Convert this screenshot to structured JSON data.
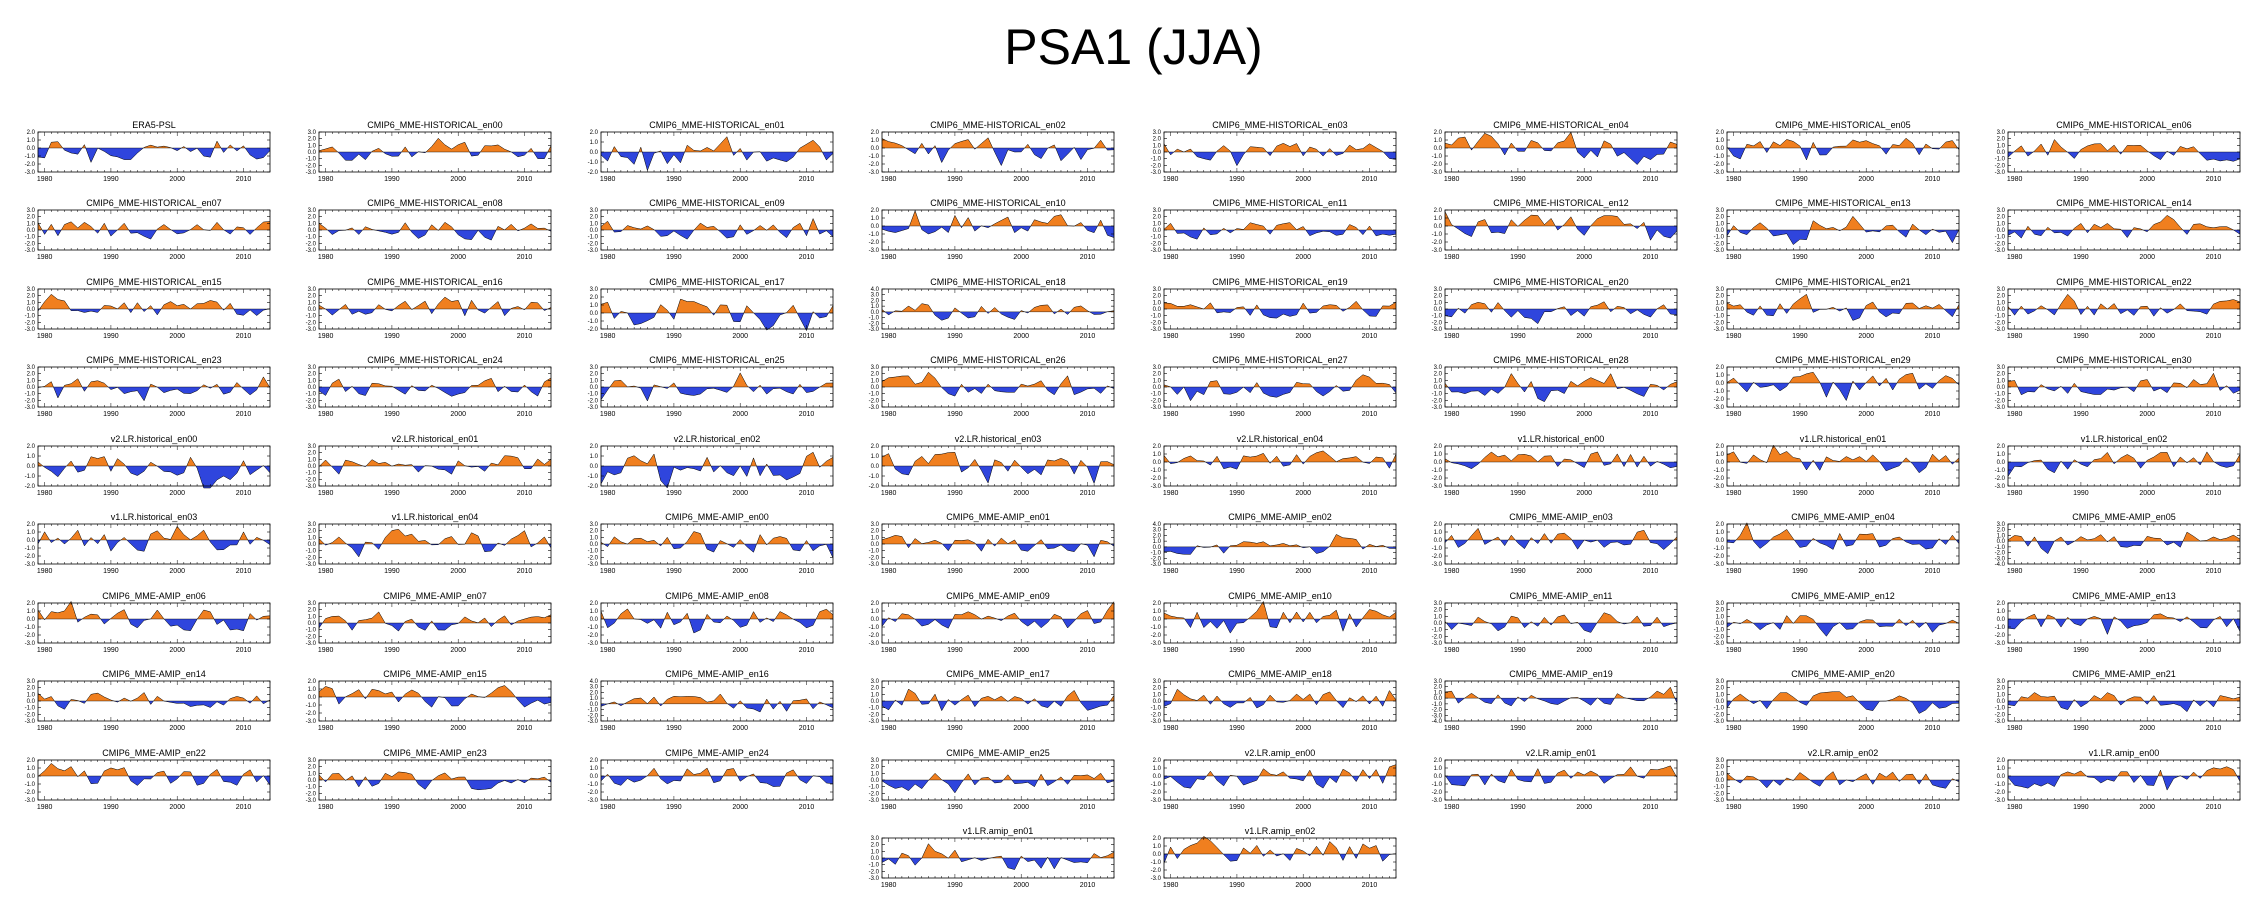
{
  "page": {
    "title": "PSA1 (JJA)"
  },
  "chart_data": {
    "type": "area",
    "title": "PSA1 (JJA)",
    "x_range": [
      1979,
      2014
    ],
    "x_ticks": [
      "1980",
      "1990",
      "2000",
      "2010"
    ],
    "positive_color": "#f07f1f",
    "negative_color": "#2f45dd",
    "panels": [
      {
        "name": "ERA5-PSL",
        "ylim": [
          -3,
          2
        ],
        "y_ticks": [
          "2.0",
          "1.0",
          "0.0",
          "-1.0",
          "-2.0",
          "-3.0"
        ]
      },
      {
        "name": "CMIP6_MME-HISTORICAL_en00",
        "ylim": [
          -3,
          3
        ],
        "y_ticks": [
          "3.0",
          "2.0",
          "1.0",
          "0.0",
          "-1.0",
          "-2.0",
          "-3.0"
        ]
      },
      {
        "name": "CMIP6_MME-HISTORICAL_en01",
        "ylim": [
          -2,
          2
        ],
        "y_ticks": [
          "2.0",
          "1.0",
          "0.0",
          "-1.0",
          "-2.0"
        ]
      },
      {
        "name": "CMIP6_MME-HISTORICAL_en02",
        "ylim": [
          -3,
          2
        ],
        "y_ticks": [
          "2.0",
          "1.0",
          "0.0",
          "-1.0",
          "-2.0",
          "-3.0"
        ]
      },
      {
        "name": "CMIP6_MME-HISTORICAL_en03",
        "ylim": [
          -3,
          3
        ],
        "y_ticks": [
          "3.0",
          "2.0",
          "1.0",
          "0.0",
          "-1.0",
          "-2.0",
          "-3.0"
        ]
      },
      {
        "name": "CMIP6_MME-HISTORICAL_en04",
        "ylim": [
          -3,
          2
        ],
        "y_ticks": [
          "2.0",
          "1.0",
          "0.0",
          "-1.0",
          "-2.0",
          "-3.0"
        ]
      },
      {
        "name": "CMIP6_MME-HISTORICAL_en05",
        "ylim": [
          -3,
          2
        ],
        "y_ticks": [
          "2.0",
          "1.0",
          "0.0",
          "-1.0",
          "-2.0",
          "-3.0"
        ]
      },
      {
        "name": "CMIP6_MME-HISTORICAL_en06",
        "ylim": [
          -3,
          3
        ],
        "y_ticks": [
          "3.0",
          "2.0",
          "1.0",
          "0.0",
          "-1.0",
          "-2.0",
          "-3.0"
        ]
      },
      {
        "name": "CMIP6_MME-HISTORICAL_en07",
        "ylim": [
          -3,
          3
        ],
        "y_ticks": [
          "3.0",
          "2.0",
          "1.0",
          "0.0",
          "-1.0",
          "-2.0",
          "-3.0"
        ]
      },
      {
        "name": "CMIP6_MME-HISTORICAL_en08",
        "ylim": [
          -3,
          3
        ],
        "y_ticks": [
          "3.0",
          "2.0",
          "1.0",
          "0.0",
          "-1.0",
          "-2.0",
          "-3.0"
        ]
      },
      {
        "name": "CMIP6_MME-HISTORICAL_en09",
        "ylim": [
          -3,
          3
        ],
        "y_ticks": [
          "3.0",
          "2.0",
          "1.0",
          "0.0",
          "-1.0",
          "-2.0",
          "-3.0"
        ]
      },
      {
        "name": "CMIP6_MME-HISTORICAL_en10",
        "ylim": [
          -3,
          2
        ],
        "y_ticks": [
          "2.0",
          "1.0",
          "0.0",
          "-1.0",
          "-2.0",
          "-3.0"
        ]
      },
      {
        "name": "CMIP6_MME-HISTORICAL_en11",
        "ylim": [
          -3,
          3
        ],
        "y_ticks": [
          "3.0",
          "2.0",
          "1.0",
          "0.0",
          "-1.0",
          "-2.0",
          "-3.0"
        ]
      },
      {
        "name": "CMIP6_MME-HISTORICAL_en12",
        "ylim": [
          -3,
          2
        ],
        "y_ticks": [
          "2.0",
          "1.0",
          "0.0",
          "-1.0",
          "-2.0",
          "-3.0"
        ]
      },
      {
        "name": "CMIP6_MME-HISTORICAL_en13",
        "ylim": [
          -3,
          3
        ],
        "y_ticks": [
          "3.0",
          "2.0",
          "1.0",
          "0.0",
          "-1.0",
          "-2.0",
          "-3.0"
        ]
      },
      {
        "name": "CMIP6_MME-HISTORICAL_en14",
        "ylim": [
          -3,
          3
        ],
        "y_ticks": [
          "3.0",
          "2.0",
          "1.0",
          "0.0",
          "-1.0",
          "-2.0",
          "-3.0"
        ]
      },
      {
        "name": "CMIP6_MME-HISTORICAL_en15",
        "ylim": [
          -3,
          3
        ],
        "y_ticks": [
          "3.0",
          "2.0",
          "1.0",
          "0.0",
          "-1.0",
          "-2.0",
          "-3.0"
        ]
      },
      {
        "name": "CMIP6_MME-HISTORICAL_en16",
        "ylim": [
          -3,
          3
        ],
        "y_ticks": [
          "3.0",
          "2.0",
          "1.0",
          "0.0",
          "-1.0",
          "-2.0",
          "-3.0"
        ]
      },
      {
        "name": "CMIP6_MME-HISTORICAL_en17",
        "ylim": [
          -2,
          3
        ],
        "y_ticks": [
          "3.0",
          "2.0",
          "1.0",
          "0.0",
          "-1.0",
          "-2.0"
        ]
      },
      {
        "name": "CMIP6_MME-HISTORICAL_en18",
        "ylim": [
          -3,
          4
        ],
        "y_ticks": [
          "4.0",
          "3.0",
          "2.0",
          "1.0",
          "0.0",
          "-1.0",
          "-2.0",
          "-3.0"
        ]
      },
      {
        "name": "CMIP6_MME-HISTORICAL_en19",
        "ylim": [
          -3,
          3
        ],
        "y_ticks": [
          "3.0",
          "2.0",
          "1.0",
          "0.0",
          "-1.0",
          "-2.0",
          "-3.0"
        ]
      },
      {
        "name": "CMIP6_MME-HISTORICAL_en20",
        "ylim": [
          -3,
          3
        ],
        "y_ticks": [
          "3.0",
          "2.0",
          "1.0",
          "0.0",
          "-1.0",
          "-2.0",
          "-3.0"
        ]
      },
      {
        "name": "CMIP6_MME-HISTORICAL_en21",
        "ylim": [
          -3,
          3
        ],
        "y_ticks": [
          "3.0",
          "2.0",
          "1.0",
          "0.0",
          "-1.0",
          "-2.0",
          "-3.0"
        ]
      },
      {
        "name": "CMIP6_MME-HISTORICAL_en22",
        "ylim": [
          -3,
          3
        ],
        "y_ticks": [
          "3.0",
          "2.0",
          "1.0",
          "0.0",
          "-1.0",
          "-2.0",
          "-3.0"
        ]
      },
      {
        "name": "CMIP6_MME-HISTORICAL_en23",
        "ylim": [
          -3,
          3
        ],
        "y_ticks": [
          "3.0",
          "2.0",
          "1.0",
          "0.0",
          "-1.0",
          "-2.0",
          "-3.0"
        ]
      },
      {
        "name": "CMIP6_MME-HISTORICAL_en24",
        "ylim": [
          -3,
          3
        ],
        "y_ticks": [
          "3.0",
          "2.0",
          "1.0",
          "0.0",
          "-1.0",
          "-2.0",
          "-3.0"
        ]
      },
      {
        "name": "CMIP6_MME-HISTORICAL_en25",
        "ylim": [
          -3,
          3
        ],
        "y_ticks": [
          "3.0",
          "2.0",
          "1.0",
          "0.0",
          "-1.0",
          "-2.0",
          "-3.0"
        ]
      },
      {
        "name": "CMIP6_MME-HISTORICAL_en26",
        "ylim": [
          -3,
          3
        ],
        "y_ticks": [
          "3.0",
          "2.0",
          "1.0",
          "0.0",
          "-1.0",
          "-2.0",
          "-3.0"
        ]
      },
      {
        "name": "CMIP6_MME-HISTORICAL_en27",
        "ylim": [
          -3,
          3
        ],
        "y_ticks": [
          "3.0",
          "2.0",
          "1.0",
          "0.0",
          "-1.0",
          "-2.0",
          "-3.0"
        ]
      },
      {
        "name": "CMIP6_MME-HISTORICAL_en28",
        "ylim": [
          -3,
          3
        ],
        "y_ticks": [
          "3.0",
          "2.0",
          "1.0",
          "0.0",
          "-1.0",
          "-2.0",
          "-3.0"
        ]
      },
      {
        "name": "CMIP6_MME-HISTORICAL_en29",
        "ylim": [
          -3,
          2
        ],
        "y_ticks": [
          "2.0",
          "1.0",
          "0.0",
          "-1.0",
          "-2.0",
          "-3.0"
        ]
      },
      {
        "name": "CMIP6_MME-HISTORICAL_en30",
        "ylim": [
          -3,
          3
        ],
        "y_ticks": [
          "3.0",
          "2.0",
          "1.0",
          "0.0",
          "-1.0",
          "-2.0",
          "-3.0"
        ]
      },
      {
        "name": "v2.LR.historical_en00",
        "ylim": [
          -2,
          2
        ],
        "y_ticks": [
          "2.0",
          "1.0",
          "0.0",
          "-1.0",
          "-2.0"
        ]
      },
      {
        "name": "v2.LR.historical_en01",
        "ylim": [
          -3,
          3
        ],
        "y_ticks": [
          "3.0",
          "2.0",
          "1.0",
          "0.0",
          "-1.0",
          "-2.0",
          "-3.0"
        ]
      },
      {
        "name": "v2.LR.historical_en02",
        "ylim": [
          -2,
          2
        ],
        "y_ticks": [
          "2.0",
          "1.0",
          "0.0",
          "-1.0",
          "-2.0"
        ]
      },
      {
        "name": "v2.LR.historical_en03",
        "ylim": [
          -2,
          2
        ],
        "y_ticks": [
          "2.0",
          "1.0",
          "0.0",
          "-1.0",
          "-2.0"
        ]
      },
      {
        "name": "v2.LR.historical_en04",
        "ylim": [
          -3,
          2
        ],
        "y_ticks": [
          "2.0",
          "1.0",
          "0.0",
          "-1.0",
          "-2.0",
          "-3.0"
        ]
      },
      {
        "name": "v1.LR.historical_en00",
        "ylim": [
          -3,
          2
        ],
        "y_ticks": [
          "2.0",
          "1.0",
          "0.0",
          "-1.0",
          "-2.0",
          "-3.0"
        ]
      },
      {
        "name": "v1.LR.historical_en01",
        "ylim": [
          -3,
          2
        ],
        "y_ticks": [
          "2.0",
          "1.0",
          "0.0",
          "-1.0",
          "-2.0",
          "-3.0"
        ]
      },
      {
        "name": "v1.LR.historical_en02",
        "ylim": [
          -3,
          2
        ],
        "y_ticks": [
          "2.0",
          "1.0",
          "0.0",
          "-1.0",
          "-2.0",
          "-3.0"
        ]
      },
      {
        "name": "v1.LR.historical_en03",
        "ylim": [
          -3,
          2
        ],
        "y_ticks": [
          "2.0",
          "1.0",
          "0.0",
          "-1.0",
          "-2.0",
          "-3.0"
        ]
      },
      {
        "name": "v1.LR.historical_en04",
        "ylim": [
          -3,
          3
        ],
        "y_ticks": [
          "3.0",
          "2.0",
          "1.0",
          "0.0",
          "-1.0",
          "-2.0",
          "-3.0"
        ]
      },
      {
        "name": "CMIP6_MME-AMIP_en00",
        "ylim": [
          -3,
          3
        ],
        "y_ticks": [
          "3.0",
          "2.0",
          "1.0",
          "0.0",
          "-1.0",
          "-2.0",
          "-3.0"
        ]
      },
      {
        "name": "CMIP6_MME-AMIP_en01",
        "ylim": [
          -3,
          3
        ],
        "y_ticks": [
          "3.0",
          "2.0",
          "1.0",
          "0.0",
          "-1.0",
          "-2.0",
          "-3.0"
        ]
      },
      {
        "name": "CMIP6_MME-AMIP_en02",
        "ylim": [
          -3,
          4
        ],
        "y_ticks": [
          "4.0",
          "3.0",
          "2.0",
          "1.0",
          "0.0",
          "-1.0",
          "-2.0",
          "-3.0"
        ]
      },
      {
        "name": "CMIP6_MME-AMIP_en03",
        "ylim": [
          -3,
          2
        ],
        "y_ticks": [
          "2.0",
          "1.0",
          "0.0",
          "-1.0",
          "-2.0",
          "-3.0"
        ]
      },
      {
        "name": "CMIP6_MME-AMIP_en04",
        "ylim": [
          -3,
          2
        ],
        "y_ticks": [
          "2.0",
          "1.0",
          "0.0",
          "-1.0",
          "-2.0",
          "-3.0"
        ]
      },
      {
        "name": "CMIP6_MME-AMIP_en05",
        "ylim": [
          -4,
          3
        ],
        "y_ticks": [
          "3.0",
          "2.0",
          "1.0",
          "0.0",
          "-1.0",
          "-2.0",
          "-3.0",
          "-4.0"
        ]
      },
      {
        "name": "CMIP6_MME-AMIP_en06",
        "ylim": [
          -3,
          2
        ],
        "y_ticks": [
          "2.0",
          "1.0",
          "0.0",
          "-1.0",
          "-2.0",
          "-3.0"
        ]
      },
      {
        "name": "CMIP6_MME-AMIP_en07",
        "ylim": [
          -3,
          3
        ],
        "y_ticks": [
          "3.0",
          "2.0",
          "1.0",
          "0.0",
          "-1.0",
          "-2.0",
          "-3.0"
        ]
      },
      {
        "name": "CMIP6_MME-AMIP_en08",
        "ylim": [
          -3,
          2
        ],
        "y_ticks": [
          "2.0",
          "1.0",
          "0.0",
          "-1.0",
          "-2.0",
          "-3.0"
        ]
      },
      {
        "name": "CMIP6_MME-AMIP_en09",
        "ylim": [
          -3,
          2
        ],
        "y_ticks": [
          "2.0",
          "1.0",
          "0.0",
          "-1.0",
          "-2.0",
          "-3.0"
        ]
      },
      {
        "name": "CMIP6_MME-AMIP_en10",
        "ylim": [
          -3,
          2
        ],
        "y_ticks": [
          "2.0",
          "1.0",
          "0.0",
          "-1.0",
          "-2.0",
          "-3.0"
        ]
      },
      {
        "name": "CMIP6_MME-AMIP_en11",
        "ylim": [
          -3,
          3
        ],
        "y_ticks": [
          "3.0",
          "2.0",
          "1.0",
          "0.0",
          "-1.0",
          "-2.0",
          "-3.0"
        ]
      },
      {
        "name": "CMIP6_MME-AMIP_en12",
        "ylim": [
          -3,
          3
        ],
        "y_ticks": [
          "3.0",
          "2.0",
          "1.0",
          "0.0",
          "-1.0",
          "-2.0",
          "-3.0"
        ]
      },
      {
        "name": "CMIP6_MME-AMIP_en13",
        "ylim": [
          -3,
          2
        ],
        "y_ticks": [
          "2.0",
          "1.0",
          "0.0",
          "-1.0",
          "-2.0",
          "-3.0"
        ]
      },
      {
        "name": "CMIP6_MME-AMIP_en14",
        "ylim": [
          -3,
          3
        ],
        "y_ticks": [
          "3.0",
          "2.0",
          "1.0",
          "0.0",
          "-1.0",
          "-2.0",
          "-3.0"
        ]
      },
      {
        "name": "CMIP6_MME-AMIP_en15",
        "ylim": [
          -3,
          2
        ],
        "y_ticks": [
          "2.0",
          "1.0",
          "0.0",
          "-1.0",
          "-2.0",
          "-3.0"
        ]
      },
      {
        "name": "CMIP6_MME-AMIP_en16",
        "ylim": [
          -3,
          4
        ],
        "y_ticks": [
          "4.0",
          "3.0",
          "2.0",
          "1.0",
          "0.0",
          "-1.0",
          "-2.0",
          "-3.0"
        ]
      },
      {
        "name": "CMIP6_MME-AMIP_en17",
        "ylim": [
          -3,
          3
        ],
        "y_ticks": [
          "3.0",
          "2.0",
          "1.0",
          "0.0",
          "-1.0",
          "-2.0",
          "-3.0"
        ]
      },
      {
        "name": "CMIP6_MME-AMIP_en18",
        "ylim": [
          -3,
          3
        ],
        "y_ticks": [
          "3.0",
          "2.0",
          "1.0",
          "0.0",
          "-1.0",
          "-2.0",
          "-3.0"
        ]
      },
      {
        "name": "CMIP6_MME-AMIP_en19",
        "ylim": [
          -4,
          3
        ],
        "y_ticks": [
          "3.0",
          "2.0",
          "1.0",
          "0.0",
          "-1.0",
          "-2.0",
          "-3.0",
          "-4.0"
        ]
      },
      {
        "name": "CMIP6_MME-AMIP_en20",
        "ylim": [
          -3,
          3
        ],
        "y_ticks": [
          "3.0",
          "2.0",
          "1.0",
          "0.0",
          "-1.0",
          "-2.0",
          "-3.0"
        ]
      },
      {
        "name": "CMIP6_MME-AMIP_en21",
        "ylim": [
          -3,
          3
        ],
        "y_ticks": [
          "3.0",
          "2.0",
          "1.0",
          "0.0",
          "-1.0",
          "-2.0",
          "-3.0"
        ]
      },
      {
        "name": "CMIP6_MME-AMIP_en22",
        "ylim": [
          -3,
          2
        ],
        "y_ticks": [
          "2.0",
          "1.0",
          "0.0",
          "-1.0",
          "-2.0",
          "-3.0"
        ]
      },
      {
        "name": "CMIP6_MME-AMIP_en23",
        "ylim": [
          -3,
          3
        ],
        "y_ticks": [
          "3.0",
          "2.0",
          "1.0",
          "0.0",
          "-1.0",
          "-2.0",
          "-3.0"
        ]
      },
      {
        "name": "CMIP6_MME-AMIP_en24",
        "ylim": [
          -3,
          2
        ],
        "y_ticks": [
          "2.0",
          "1.0",
          "0.0",
          "-1.0",
          "-2.0",
          "-3.0"
        ]
      },
      {
        "name": "CMIP6_MME-AMIP_en25",
        "ylim": [
          -3,
          3
        ],
        "y_ticks": [
          "3.0",
          "2.0",
          "1.0",
          "0.0",
          "-1.0",
          "-2.0",
          "-3.0"
        ]
      },
      {
        "name": "v2.LR.amip_en00",
        "ylim": [
          -3,
          2
        ],
        "y_ticks": [
          "2.0",
          "1.0",
          "0.0",
          "-1.0",
          "-2.0",
          "-3.0"
        ]
      },
      {
        "name": "v2.LR.amip_en01",
        "ylim": [
          -3,
          2
        ],
        "y_ticks": [
          "2.0",
          "1.0",
          "0.0",
          "-1.0",
          "-2.0",
          "-3.0"
        ]
      },
      {
        "name": "v2.LR.amip_en02",
        "ylim": [
          -3,
          3
        ],
        "y_ticks": [
          "3.0",
          "2.0",
          "1.0",
          "0.0",
          "-1.0",
          "-2.0",
          "-3.0"
        ]
      },
      {
        "name": "v1.LR.amip_en00",
        "ylim": [
          -3,
          2
        ],
        "y_ticks": [
          "2.0",
          "1.0",
          "0.0",
          "-1.0",
          "-2.0",
          "-3.0"
        ]
      },
      {
        "name": "v1.LR.amip_en01",
        "ylim": [
          -3,
          3
        ],
        "y_ticks": [
          "3.0",
          "2.0",
          "1.0",
          "0.0",
          "-1.0",
          "-2.0",
          "-3.0"
        ]
      },
      {
        "name": "v1.LR.amip_en02",
        "ylim": [
          -3,
          2
        ],
        "y_ticks": [
          "2.0",
          "1.0",
          "0.0",
          "-1.0",
          "-2.0",
          "-3.0"
        ]
      }
    ]
  }
}
